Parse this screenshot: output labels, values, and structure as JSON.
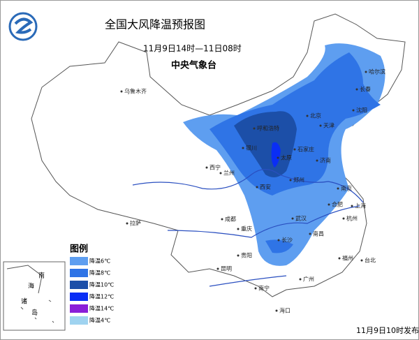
{
  "header": {
    "title": "全国大风降温预报图",
    "subtitle": "11月9日14时—11日08时",
    "agency": "中央气象台"
  },
  "legend": {
    "title": "图例",
    "items": [
      {
        "label": "降温6℃",
        "color": "#5e9ef0"
      },
      {
        "label": "降温8℃",
        "color": "#2f74e6"
      },
      {
        "label": "降温10℃",
        "color": "#1c4fa8"
      },
      {
        "label": "降温12℃",
        "color": "#0a2ef5"
      },
      {
        "label": "降温14℃",
        "color": "#8a1ed8"
      },
      {
        "label": "降温4℃",
        "color": "#9fd3f0"
      }
    ]
  },
  "cities": [
    "乌鲁木齐",
    "哈尔滨",
    "长春",
    "沈阳",
    "呼和浩特",
    "北京",
    "天津",
    "石家庄",
    "太原",
    "银川",
    "兰州",
    "西宁",
    "济南",
    "郑州",
    "西安",
    "合肥",
    "南京",
    "上海",
    "杭州",
    "武汉",
    "成都",
    "重庆",
    "长沙",
    "南昌",
    "福州",
    "贵阳",
    "昆明",
    "南宁",
    "广州",
    "台北",
    "海口",
    "拉萨"
  ],
  "inset_labels": [
    "南",
    "海",
    "诸",
    "岛"
  ],
  "footer": "11月9日10时发布"
}
